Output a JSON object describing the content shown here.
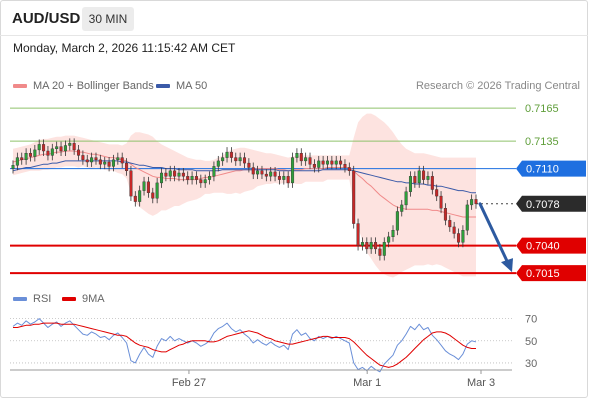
{
  "header": {
    "symbol": "AUD/USD",
    "timeframe": "30 MIN",
    "datetime": "Monday, March 2, 2026 11:15:42 AM CET"
  },
  "legend": {
    "ma20_label": "MA 20 + Bollinger Bands",
    "ma50_label": "MA 50",
    "credit": "Research © 2026 Trading Central",
    "rsi_label": "RSI",
    "ma9_label": "9MA"
  },
  "colors": {
    "candle_up": "#2e9e3a",
    "candle_down": "#c62828",
    "ma20": "#f08a8a",
    "bollinger_fill": "#fde3e0",
    "ma50": "#3b5aa8",
    "green_level": "#8fc26b",
    "blue_level": "#1e6fe0",
    "red_level": "#e00000",
    "current_label": "#2b2b2b",
    "arrow": "#2d5aa0",
    "rsi": "#6a8fd8",
    "rsi_ma": "#e00000"
  },
  "chart_data": [
    {
      "type": "candlestick",
      "title": "AUD/USD",
      "ylim": [
        0.7006,
        0.7176
      ],
      "x_ticks": [
        "Feb 27",
        "Mar 1",
        "Mar 3"
      ],
      "levels": [
        {
          "value": 0.7165,
          "label": "0.7165",
          "kind": "resistance-green"
        },
        {
          "value": 0.7135,
          "label": "0.7135",
          "kind": "resistance-green"
        },
        {
          "value": 0.711,
          "label": "0.7110",
          "kind": "pivot-blue"
        },
        {
          "value": 0.7078,
          "label": "0.7078",
          "kind": "current"
        },
        {
          "value": 0.704,
          "label": "0.7040",
          "kind": "support-red"
        },
        {
          "value": 0.7015,
          "label": "0.7015",
          "kind": "support-red"
        }
      ],
      "close": [
        0.7113,
        0.712,
        0.7118,
        0.7124,
        0.7121,
        0.7127,
        0.7132,
        0.7126,
        0.7122,
        0.7128,
        0.713,
        0.7126,
        0.7131,
        0.7133,
        0.7127,
        0.7122,
        0.7118,
        0.7116,
        0.712,
        0.7118,
        0.7114,
        0.7116,
        0.7112,
        0.7118,
        0.712,
        0.7115,
        0.7108,
        0.7085,
        0.708,
        0.709,
        0.7098,
        0.7088,
        0.7083,
        0.7097,
        0.7106,
        0.7103,
        0.7108,
        0.7103,
        0.7106,
        0.7103,
        0.71,
        0.7103,
        0.71,
        0.7097,
        0.71,
        0.7103,
        0.7112,
        0.7117,
        0.712,
        0.7125,
        0.712,
        0.7117,
        0.712,
        0.7115,
        0.7111,
        0.7105,
        0.7108,
        0.7105,
        0.7103,
        0.7107,
        0.7103,
        0.71,
        0.7103,
        0.7097,
        0.712,
        0.7124,
        0.7117,
        0.712,
        0.7114,
        0.7111,
        0.7117,
        0.7114,
        0.7117,
        0.7114,
        0.7117,
        0.7114,
        0.7111,
        0.7108,
        0.706,
        0.704,
        0.7043,
        0.7037,
        0.7043,
        0.7037,
        0.7031,
        0.7043,
        0.7048,
        0.7054,
        0.7071,
        0.7077,
        0.7089,
        0.7103,
        0.7097,
        0.7108,
        0.71,
        0.7103,
        0.7091,
        0.7085,
        0.7074,
        0.7063,
        0.7057,
        0.7051,
        0.7043,
        0.7054,
        0.7077,
        0.7082,
        0.7078
      ],
      "ma20": [
        0.7116,
        0.7117,
        0.7118,
        0.7119,
        0.712,
        0.7121,
        0.7122,
        0.7123,
        0.7123,
        0.7124,
        0.7125,
        0.7125,
        0.7126,
        0.7126,
        0.7126,
        0.7125,
        0.7125,
        0.7124,
        0.7123,
        0.7123,
        0.7122,
        0.7121,
        0.712,
        0.712,
        0.7119,
        0.7118,
        0.7117,
        0.7114,
        0.7111,
        0.7109,
        0.7107,
        0.7105,
        0.7103,
        0.7102,
        0.7102,
        0.7101,
        0.7101,
        0.7101,
        0.71,
        0.71,
        0.71,
        0.71,
        0.71,
        0.7101,
        0.7102,
        0.7102,
        0.7103,
        0.7104,
        0.7105,
        0.7106,
        0.7107,
        0.7108,
        0.7108,
        0.7109,
        0.7109,
        0.7109,
        0.711,
        0.711,
        0.711,
        0.711,
        0.711,
        0.7109,
        0.7109,
        0.7108,
        0.7109,
        0.7109,
        0.7109,
        0.711,
        0.711,
        0.711,
        0.711,
        0.711,
        0.7111,
        0.7111,
        0.7111,
        0.7111,
        0.7111,
        0.7111,
        0.7108,
        0.7104,
        0.7101,
        0.7097,
        0.7094,
        0.709,
        0.7086,
        0.7083,
        0.708,
        0.7077,
        0.7075,
        0.7074,
        0.7073,
        0.7073,
        0.7073,
        0.7073,
        0.7073,
        0.7073,
        0.7072,
        0.7072,
        0.7071,
        0.707,
        0.7069,
        0.7068,
        0.7067,
        0.7066,
        0.7066,
        0.7066,
        0.7066
      ],
      "bb_upper": [
        0.7128,
        0.7129,
        0.713,
        0.7131,
        0.7132,
        0.7134,
        0.7136,
        0.7137,
        0.7137,
        0.7138,
        0.7139,
        0.7139,
        0.714,
        0.714,
        0.714,
        0.7139,
        0.7138,
        0.7137,
        0.7136,
        0.7135,
        0.7134,
        0.7133,
        0.7132,
        0.7132,
        0.7132,
        0.7131,
        0.7133,
        0.714,
        0.7143,
        0.7143,
        0.7142,
        0.7141,
        0.7139,
        0.7135,
        0.7132,
        0.713,
        0.7128,
        0.7126,
        0.7124,
        0.7122,
        0.712,
        0.7119,
        0.7118,
        0.7118,
        0.7117,
        0.7117,
        0.7118,
        0.712,
        0.7122,
        0.7125,
        0.7127,
        0.7128,
        0.7129,
        0.7129,
        0.7128,
        0.7127,
        0.7126,
        0.7125,
        0.7124,
        0.7124,
        0.7123,
        0.7122,
        0.7121,
        0.712,
        0.7121,
        0.7122,
        0.7122,
        0.7122,
        0.7122,
        0.7122,
        0.7122,
        0.7122,
        0.7122,
        0.7122,
        0.7122,
        0.7122,
        0.7122,
        0.7122,
        0.7138,
        0.7152,
        0.7157,
        0.716,
        0.716,
        0.7158,
        0.7155,
        0.7152,
        0.7148,
        0.7143,
        0.7137,
        0.7132,
        0.7128,
        0.7126,
        0.7124,
        0.7124,
        0.7124,
        0.7123,
        0.7122,
        0.7121,
        0.712,
        0.712,
        0.712,
        0.712,
        0.712,
        0.712,
        0.712,
        0.712,
        0.712
      ],
      "bb_lower": [
        0.7104,
        0.7105,
        0.7106,
        0.7107,
        0.7108,
        0.7108,
        0.7108,
        0.7109,
        0.7109,
        0.711,
        0.7111,
        0.7111,
        0.7112,
        0.7112,
        0.7112,
        0.7111,
        0.7112,
        0.7111,
        0.711,
        0.7111,
        0.711,
        0.7109,
        0.7108,
        0.7108,
        0.7106,
        0.7105,
        0.7101,
        0.7088,
        0.7079,
        0.7075,
        0.7072,
        0.7069,
        0.7067,
        0.7069,
        0.7072,
        0.7072,
        0.7074,
        0.7076,
        0.7076,
        0.7078,
        0.708,
        0.7081,
        0.7082,
        0.7084,
        0.7087,
        0.7087,
        0.7088,
        0.7088,
        0.7088,
        0.7087,
        0.7087,
        0.7088,
        0.7087,
        0.7089,
        0.709,
        0.7091,
        0.7094,
        0.7095,
        0.7096,
        0.7096,
        0.7097,
        0.7096,
        0.7097,
        0.7096,
        0.7097,
        0.7096,
        0.7096,
        0.7098,
        0.7098,
        0.7098,
        0.7098,
        0.7098,
        0.71,
        0.71,
        0.71,
        0.71,
        0.71,
        0.71,
        0.7078,
        0.7056,
        0.7045,
        0.7034,
        0.7028,
        0.7022,
        0.7017,
        0.7014,
        0.7012,
        0.7011,
        0.7013,
        0.7016,
        0.7018,
        0.702,
        0.7022,
        0.7022,
        0.7022,
        0.7023,
        0.7022,
        0.7023,
        0.7022,
        0.702,
        0.7018,
        0.7016,
        0.7014,
        0.7012,
        0.7012,
        0.7012,
        0.7012
      ],
      "ma50": [
        0.7108,
        0.7109,
        0.711,
        0.7111,
        0.7111,
        0.7112,
        0.7113,
        0.7114,
        0.7114,
        0.7115,
        0.7115,
        0.7116,
        0.7117,
        0.7117,
        0.7117,
        0.7117,
        0.7117,
        0.7117,
        0.7117,
        0.7117,
        0.7117,
        0.7117,
        0.7117,
        0.7117,
        0.7117,
        0.7116,
        0.7116,
        0.7115,
        0.7114,
        0.7113,
        0.7113,
        0.7112,
        0.7111,
        0.7111,
        0.7111,
        0.711,
        0.711,
        0.711,
        0.7109,
        0.7109,
        0.7109,
        0.7109,
        0.7108,
        0.7108,
        0.7108,
        0.7108,
        0.7108,
        0.7108,
        0.7109,
        0.7109,
        0.7109,
        0.7109,
        0.7109,
        0.7109,
        0.7109,
        0.7109,
        0.7109,
        0.7109,
        0.7109,
        0.7109,
        0.7109,
        0.7108,
        0.7108,
        0.7108,
        0.7108,
        0.7108,
        0.7108,
        0.7108,
        0.7108,
        0.7108,
        0.7108,
        0.7109,
        0.7109,
        0.7109,
        0.7109,
        0.7109,
        0.7109,
        0.7109,
        0.7108,
        0.7107,
        0.7106,
        0.7105,
        0.7104,
        0.7103,
        0.7102,
        0.7101,
        0.71,
        0.7099,
        0.7098,
        0.7098,
        0.7097,
        0.7097,
        0.7096,
        0.7096,
        0.7096,
        0.7095,
        0.7095,
        0.7094,
        0.7094,
        0.7093,
        0.7092,
        0.7091,
        0.709,
        0.709,
        0.7089,
        0.7088,
        0.7088
      ]
    },
    {
      "type": "line",
      "title": "RSI",
      "ylim": [
        20,
        76
      ],
      "y_ticks": [
        70,
        50,
        30
      ],
      "x_ticks": [
        "Feb 27",
        "Mar 1",
        "Mar 3"
      ],
      "series": [
        {
          "name": "RSI",
          "values": [
            63,
            66,
            64,
            68,
            65,
            67,
            70,
            66,
            62,
            65,
            67,
            63,
            66,
            68,
            64,
            60,
            56,
            55,
            58,
            56,
            53,
            54,
            51,
            55,
            57,
            53,
            48,
            32,
            30,
            38,
            44,
            38,
            35,
            45,
            52,
            50,
            54,
            50,
            52,
            50,
            48,
            50,
            48,
            45,
            47,
            50,
            57,
            61,
            63,
            66,
            61,
            58,
            60,
            56,
            53,
            48,
            51,
            48,
            46,
            49,
            46,
            44,
            46,
            42,
            56,
            60,
            55,
            57,
            52,
            50,
            54,
            52,
            54,
            52,
            54,
            52,
            50,
            48,
            30,
            24,
            26,
            23,
            27,
            24,
            22,
            29,
            33,
            37,
            46,
            50,
            56,
            63,
            60,
            65,
            60,
            62,
            55,
            51,
            46,
            41,
            38,
            36,
            33,
            38,
            47,
            50,
            49
          ]
        },
        {
          "name": "9MA",
          "values": [
            62,
            62,
            63,
            64,
            64,
            65,
            65,
            66,
            66,
            66,
            66,
            65,
            65,
            65,
            65,
            64,
            63,
            62,
            61,
            60,
            59,
            58,
            57,
            56,
            55,
            55,
            54,
            51,
            48,
            46,
            45,
            44,
            42,
            41,
            40,
            40,
            42,
            44,
            46,
            47,
            49,
            50,
            50,
            50,
            50,
            49,
            49,
            50,
            52,
            54,
            55,
            56,
            57,
            58,
            59,
            58,
            57,
            55,
            53,
            52,
            50,
            49,
            48,
            47,
            47,
            48,
            49,
            50,
            51,
            52,
            53,
            54,
            54,
            53,
            53,
            53,
            53,
            52,
            49,
            45,
            41,
            37,
            34,
            31,
            28,
            27,
            26,
            27,
            29,
            32,
            35,
            39,
            43,
            47,
            51,
            54,
            57,
            58,
            58,
            57,
            55,
            52,
            49,
            46,
            44,
            43,
            43
          ]
        }
      ]
    }
  ]
}
